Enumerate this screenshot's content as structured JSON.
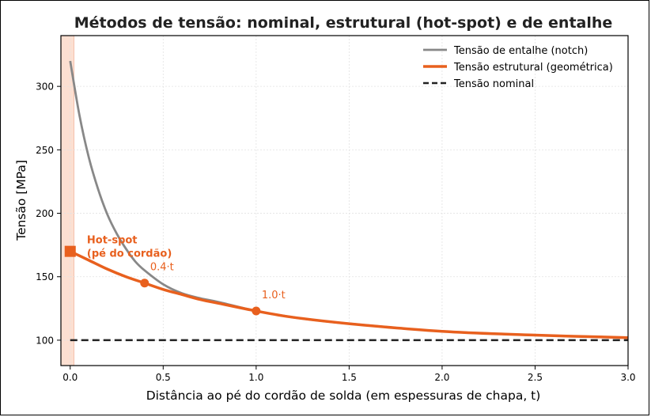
{
  "chart_data": {
    "type": "line",
    "title": "Métodos de tensão: nominal, estrutural (hot-spot) e de entalhe",
    "xlabel": "Distância ao pé do cordão de solda (em espessuras de chapa, t)",
    "ylabel": "Tensão [MPa]",
    "xlim": [
      -0.05,
      3.0
    ],
    "ylim": [
      80,
      340
    ],
    "x_ticks": [
      0.0,
      0.5,
      1.0,
      1.5,
      2.0,
      2.5,
      3.0
    ],
    "x_tick_labels": [
      "0.0",
      "0.5",
      "1.0",
      "1.5",
      "2.0",
      "2.5",
      "3.0"
    ],
    "y_ticks": [
      100,
      150,
      200,
      250,
      300
    ],
    "y_tick_labels": [
      "100",
      "150",
      "200",
      "250",
      "300"
    ],
    "grid": true,
    "legend_position": "top-right",
    "shaded_region": {
      "x_start": -0.05,
      "x_end": 0.02,
      "color": "#fbd9c9"
    },
    "series": [
      {
        "name": "Tensão de entalhe (notch)",
        "color": "#888888",
        "style": "solid",
        "x": [
          0.0,
          0.05,
          0.1,
          0.15,
          0.2,
          0.25,
          0.3,
          0.35,
          0.4,
          0.5,
          0.6,
          0.7,
          0.8,
          1.0,
          1.2,
          1.5,
          2.0,
          2.5,
          3.0
        ],
        "y": [
          320,
          277,
          244,
          219,
          199,
          184,
          172,
          162,
          155,
          144,
          137,
          133,
          130,
          123,
          118,
          113,
          107,
          104,
          102
        ]
      },
      {
        "name": "Tensão estrutural (geométrica)",
        "color": "#e8601e",
        "style": "solid",
        "x": [
          0.0,
          0.1,
          0.2,
          0.3,
          0.4,
          0.5,
          0.6,
          0.7,
          0.8,
          1.0,
          1.2,
          1.5,
          2.0,
          2.5,
          3.0
        ],
        "y": [
          170,
          163,
          156,
          150,
          145,
          140,
          136,
          132,
          129,
          123,
          118,
          113,
          107,
          104,
          102
        ]
      },
      {
        "name": "Tensão nominal",
        "color": "#222222",
        "style": "dashed",
        "x": [
          0.0,
          3.0
        ],
        "y": [
          100,
          100
        ]
      }
    ],
    "markers": [
      {
        "shape": "square",
        "x": 0.0,
        "y": 170,
        "color": "#e8601e"
      },
      {
        "shape": "circle",
        "x": 0.4,
        "y": 145,
        "color": "#e8601e"
      },
      {
        "shape": "circle",
        "x": 1.0,
        "y": 123,
        "color": "#e8601e"
      }
    ],
    "annotations": [
      {
        "lines": [
          "Hot-spot",
          "(pé do cordão)"
        ],
        "x": 0.09,
        "y": 170,
        "color": "#e8601e",
        "bold": true
      },
      {
        "text": "0.4·t",
        "x": 0.43,
        "y": 155,
        "color": "#e8601e",
        "bold": false
      },
      {
        "text": "1.0·t",
        "x": 1.03,
        "y": 133,
        "color": "#e8601e",
        "bold": false
      }
    ]
  }
}
